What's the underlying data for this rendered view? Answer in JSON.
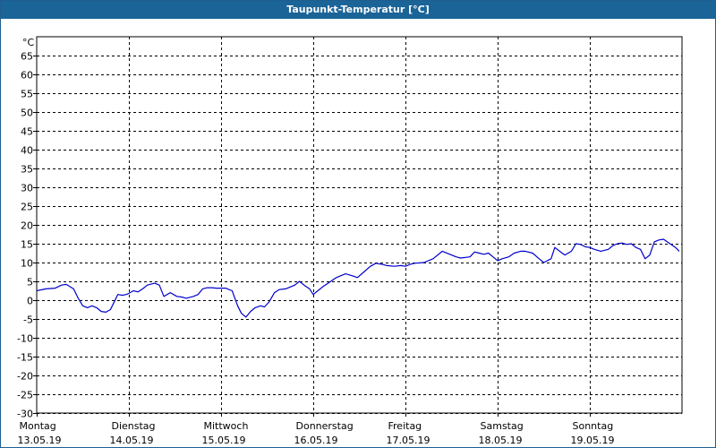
{
  "window": {
    "title": "Taupunkt-Temperatur [°C]"
  },
  "chart_data": {
    "type": "line",
    "title": "Taupunkt-Temperatur [°C]",
    "ylabel": "°C",
    "ylim": [
      -30,
      70
    ],
    "yticks": [
      -30,
      -25,
      -20,
      -15,
      -10,
      -5,
      0,
      5,
      10,
      15,
      20,
      25,
      30,
      35,
      40,
      45,
      50,
      55,
      60,
      65
    ],
    "xlim": [
      0,
      7
    ],
    "grid": true,
    "x_tick_labels": [
      {
        "day": "Montag",
        "date": "13.05.19"
      },
      {
        "day": "Dienstag",
        "date": "14.05.19"
      },
      {
        "day": "Mittwoch",
        "date": "15.05.19"
      },
      {
        "day": "Donnerstag",
        "date": "16.05.19"
      },
      {
        "day": "Freitag",
        "date": "17.05.19"
      },
      {
        "day": "Samstag",
        "date": "18.05.19"
      },
      {
        "day": "Sonntag",
        "date": "19.05.19"
      }
    ],
    "series": [
      {
        "color": "#0000cc",
        "x": [
          0.0,
          0.1,
          0.2,
          0.27,
          0.32,
          0.4,
          0.45,
          0.5,
          0.55,
          0.6,
          0.65,
          0.7,
          0.75,
          0.8,
          0.83,
          0.88,
          0.93,
          0.97,
          1.0,
          1.05,
          1.1,
          1.15,
          1.2,
          1.28,
          1.33,
          1.38,
          1.45,
          1.52,
          1.58,
          1.62,
          1.7,
          1.75,
          1.8,
          1.85,
          1.9,
          1.95,
          2.0,
          2.05,
          2.12,
          2.18,
          2.22,
          2.27,
          2.32,
          2.37,
          2.43,
          2.47,
          2.52,
          2.58,
          2.63,
          2.7,
          2.75,
          2.8,
          2.85,
          2.9,
          2.96,
          3.0,
          3.05,
          3.1,
          3.18,
          3.25,
          3.3,
          3.35,
          3.42,
          3.48,
          3.55,
          3.62,
          3.68,
          3.75,
          3.8,
          3.88,
          3.95,
          4.0,
          4.05,
          4.1,
          4.2,
          4.3,
          4.4,
          4.5,
          4.55,
          4.6,
          4.7,
          4.75,
          4.8,
          4.85,
          4.9,
          4.95,
          5.0,
          5.05,
          5.12,
          5.18,
          5.25,
          5.3,
          5.38,
          5.45,
          5.5,
          5.58,
          5.62,
          5.7,
          5.73,
          5.8,
          5.85,
          5.9,
          5.95,
          6.0,
          6.05,
          6.12,
          6.2,
          6.25,
          6.3,
          6.35,
          6.4,
          6.45,
          6.5,
          6.55,
          6.6,
          6.65,
          6.7,
          6.75,
          6.8,
          6.87,
          6.93,
          6.97
        ],
        "y": [
          2.5,
          3.0,
          3.2,
          4.0,
          4.2,
          3.0,
          0.5,
          -1.5,
          -2.0,
          -1.5,
          -2.0,
          -3.0,
          -3.2,
          -2.5,
          -1.0,
          1.5,
          1.3,
          1.5,
          1.8,
          2.5,
          2.2,
          3.0,
          4.0,
          4.5,
          4.0,
          1.0,
          2.0,
          1.0,
          0.8,
          0.5,
          1.0,
          1.5,
          3.0,
          3.3,
          3.3,
          3.2,
          3.2,
          3.2,
          2.5,
          -1.5,
          -3.5,
          -4.5,
          -3.0,
          -2.0,
          -1.5,
          -1.8,
          -0.5,
          2.0,
          2.8,
          3.0,
          3.5,
          4.0,
          5.0,
          4.0,
          3.0,
          1.5,
          2.5,
          3.5,
          4.8,
          6.0,
          6.5,
          7.0,
          6.5,
          6.0,
          7.5,
          9.0,
          9.8,
          9.5,
          9.2,
          9.0,
          9.2,
          9.0,
          9.5,
          9.8,
          10.0,
          11.0,
          13.0,
          12.0,
          11.5,
          11.2,
          11.5,
          12.8,
          12.5,
          12.2,
          12.5,
          11.5,
          10.5,
          11.0,
          11.5,
          12.5,
          13.0,
          13.0,
          12.5,
          11.0,
          10.0,
          11.0,
          14.0,
          12.5,
          12.0,
          13.0,
          15.0,
          14.8,
          14.2,
          14.0,
          13.5,
          13.0,
          13.5,
          14.5,
          15.0,
          15.2,
          14.8,
          15.0,
          14.0,
          13.5,
          11.0,
          12.0,
          15.5,
          16.0,
          16.2,
          15.0,
          14.0,
          13.0
        ]
      }
    ]
  }
}
